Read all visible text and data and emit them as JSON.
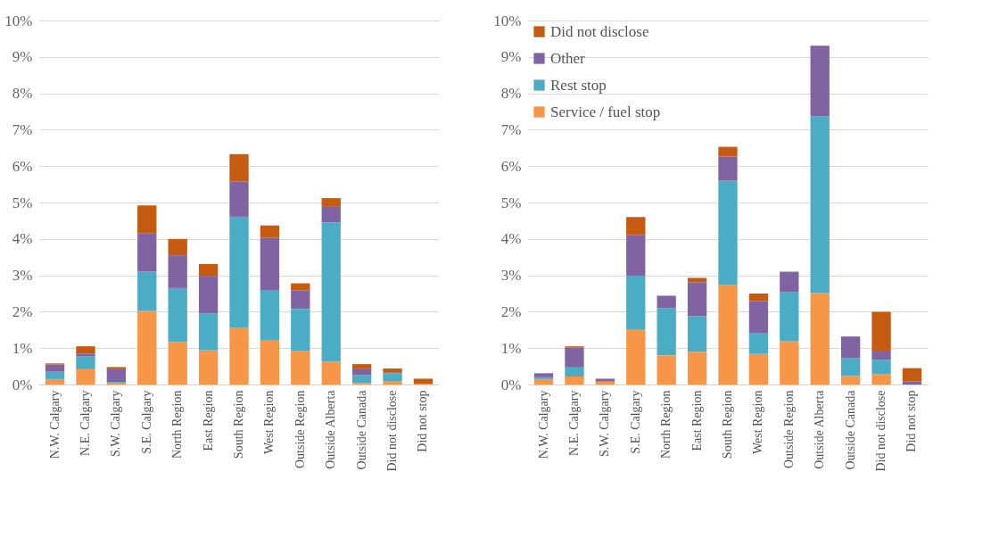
{
  "chart_data": [
    {
      "type": "bar",
      "stacked": true,
      "grid": "y",
      "categories": [
        "N.W. Calgary",
        "N.E. Calgary",
        "S.W. Calgary",
        "S.E. Calgary",
        "North Region",
        "East Region",
        "South Region",
        "West Region",
        "Outside Region",
        "Outside Alberta",
        "Outside Canada",
        "Did not disclose",
        "Did not stop"
      ],
      "ylim": [
        0,
        10
      ],
      "yticks": [
        {
          "value": 0,
          "label": "0%"
        },
        {
          "value": 1,
          "label": "1%"
        },
        {
          "value": 2,
          "label": "2%"
        },
        {
          "value": 3,
          "label": "3%"
        },
        {
          "value": 4,
          "label": "4%"
        },
        {
          "value": 5,
          "label": "5%"
        },
        {
          "value": 6,
          "label": "6%"
        },
        {
          "value": 7,
          "label": "7%"
        },
        {
          "value": 8,
          "label": "8%"
        },
        {
          "value": 9,
          "label": "9%"
        },
        {
          "value": 10,
          "label": "10%"
        }
      ],
      "series": [
        {
          "color": "#f79646",
          "values": [
            0.15,
            0.42,
            0.05,
            2.02,
            1.17,
            0.94,
            1.57,
            1.21,
            0.93,
            0.63,
            0.04,
            0.08,
            0.02
          ]
        },
        {
          "color": "#4bacc6",
          "values": [
            0.2,
            0.35,
            0.02,
            1.08,
            1.48,
            1.01,
            3.04,
            1.39,
            1.15,
            3.82,
            0.22,
            0.23,
            0
          ]
        },
        {
          "color": "#8064a2",
          "values": [
            0.2,
            0.08,
            0.35,
            1.05,
            0.9,
            1.02,
            0.97,
            1.43,
            0.5,
            0.43,
            0.16,
            0.03,
            0
          ]
        },
        {
          "color": "#c55a11",
          "values": [
            0.03,
            0.2,
            0.06,
            0.77,
            0.45,
            0.34,
            0.75,
            0.34,
            0.2,
            0.24,
            0.14,
            0.1,
            0.14
          ]
        }
      ]
    },
    {
      "type": "bar",
      "stacked": true,
      "grid": "y",
      "legend": "top left",
      "categories": [
        "N.W. Calgary",
        "N.E. Calgary",
        "S.W. Calgary",
        "S.E. Calgary",
        "North Region",
        "East Region",
        "South Region",
        "West Region",
        "Outside Region",
        "Outside Alberta",
        "Outside Canada",
        "Did not disclose",
        "Did not stop"
      ],
      "ylim": [
        0,
        10
      ],
      "yticks": [
        {
          "value": 0,
          "label": "0%"
        },
        {
          "value": 1,
          "label": "1%"
        },
        {
          "value": 2,
          "label": "2%"
        },
        {
          "value": 3,
          "label": "3%"
        },
        {
          "value": 4,
          "label": "4%"
        },
        {
          "value": 5,
          "label": "5%"
        },
        {
          "value": 6,
          "label": "6%"
        },
        {
          "value": 7,
          "label": "7%"
        },
        {
          "value": 8,
          "label": "8%"
        },
        {
          "value": 9,
          "label": "9%"
        },
        {
          "value": 10,
          "label": "10%"
        }
      ],
      "series": [
        {
          "name": "Service / fuel stop",
          "color": "#f79646",
          "values": [
            0.15,
            0.22,
            0.08,
            1.5,
            0.8,
            0.9,
            2.73,
            0.84,
            1.19,
            2.51,
            0.24,
            0.29,
            0
          ]
        },
        {
          "name": "Rest stop",
          "color": "#4bacc6",
          "values": [
            0.05,
            0.25,
            0,
            1.49,
            1.3,
            0.98,
            2.87,
            0.58,
            1.35,
            4.86,
            0.48,
            0.39,
            0
          ]
        },
        {
          "name": "Other",
          "color": "#8064a2",
          "values": [
            0.11,
            0.55,
            0.08,
            1.12,
            0.34,
            0.93,
            0.66,
            0.87,
            0.56,
            1.94,
            0.6,
            0.25,
            0.08
          ]
        },
        {
          "name": "Did not disclose",
          "color": "#c55a11",
          "values": [
            0,
            0.03,
            0,
            0.49,
            0,
            0.12,
            0.27,
            0.21,
            0,
            0,
            0,
            1.07,
            0.37
          ]
        }
      ]
    }
  ]
}
